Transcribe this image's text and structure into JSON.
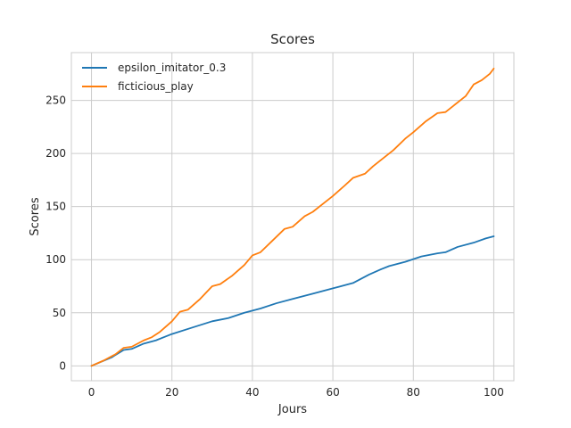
{
  "chart_data": {
    "type": "line",
    "title": "Scores",
    "xlabel": "Jours",
    "ylabel": "Scores",
    "xlim": [
      -5,
      105
    ],
    "ylim": [
      -14,
      295
    ],
    "xticks": [
      0,
      20,
      40,
      60,
      80,
      100
    ],
    "yticks": [
      0,
      50,
      100,
      150,
      200,
      250
    ],
    "grid": true,
    "legend_position": "top-left",
    "series": [
      {
        "name": "epsilon_imitator_0.3",
        "color": "#1f77b4",
        "points": [
          [
            0,
            0
          ],
          [
            5,
            8
          ],
          [
            8,
            15
          ],
          [
            10,
            16
          ],
          [
            13,
            21
          ],
          [
            16,
            24
          ],
          [
            20,
            30
          ],
          [
            25,
            36
          ],
          [
            30,
            42
          ],
          [
            34,
            45
          ],
          [
            38,
            50
          ],
          [
            42,
            54
          ],
          [
            46,
            59
          ],
          [
            50,
            63
          ],
          [
            55,
            68
          ],
          [
            60,
            73
          ],
          [
            65,
            78
          ],
          [
            69,
            86
          ],
          [
            72,
            91
          ],
          [
            74,
            94
          ],
          [
            78,
            98
          ],
          [
            82,
            103
          ],
          [
            86,
            106
          ],
          [
            88,
            107
          ],
          [
            91,
            112
          ],
          [
            95,
            116
          ],
          [
            98,
            120
          ],
          [
            100,
            122
          ]
        ]
      },
      {
        "name": "ficticious_play",
        "color": "#ff7f0e",
        "points": [
          [
            0,
            0
          ],
          [
            3,
            5
          ],
          [
            6,
            11
          ],
          [
            8,
            17
          ],
          [
            10,
            18
          ],
          [
            13,
            24
          ],
          [
            15,
            27
          ],
          [
            17,
            32
          ],
          [
            20,
            42
          ],
          [
            22,
            51
          ],
          [
            24,
            53
          ],
          [
            27,
            63
          ],
          [
            30,
            75
          ],
          [
            32,
            77
          ],
          [
            35,
            85
          ],
          [
            38,
            95
          ],
          [
            40,
            104
          ],
          [
            42,
            107
          ],
          [
            45,
            118
          ],
          [
            48,
            129
          ],
          [
            50,
            131
          ],
          [
            53,
            141
          ],
          [
            55,
            145
          ],
          [
            58,
            154
          ],
          [
            60,
            160
          ],
          [
            63,
            170
          ],
          [
            65,
            177
          ],
          [
            68,
            181
          ],
          [
            70,
            188
          ],
          [
            73,
            197
          ],
          [
            75,
            203
          ],
          [
            78,
            214
          ],
          [
            80,
            220
          ],
          [
            83,
            230
          ],
          [
            86,
            238
          ],
          [
            88,
            239
          ],
          [
            90,
            245
          ],
          [
            93,
            254
          ],
          [
            95,
            265
          ],
          [
            97,
            269
          ],
          [
            99,
            275
          ],
          [
            100,
            280
          ]
        ]
      }
    ]
  }
}
